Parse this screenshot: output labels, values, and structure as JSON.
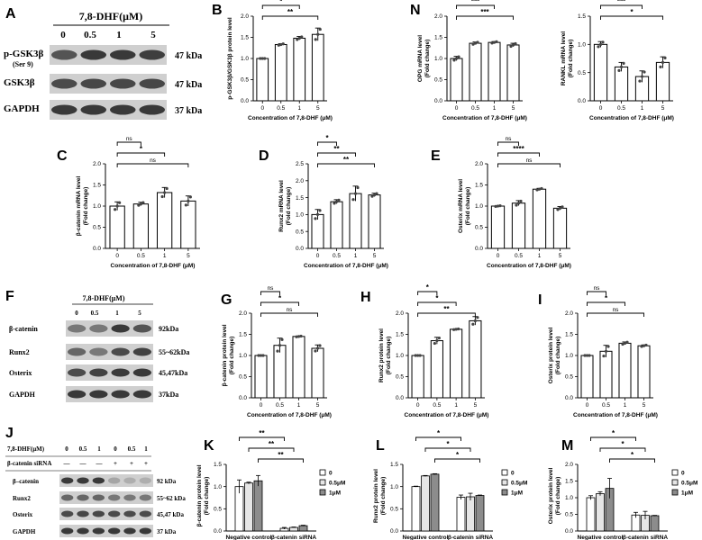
{
  "panels": {
    "A": {
      "label": "A",
      "dose_title": "7,8-DHF(μM)",
      "doses": [
        "0",
        "0.5",
        "1",
        "5"
      ],
      "rows": [
        {
          "label": "p-GSK3β",
          "sublabel": "(Ser 9)",
          "kda": "47 kDa"
        },
        {
          "label": "GSK3β",
          "kda": "47 kDa"
        },
        {
          "label": "GAPDH",
          "kda": "37 kDa"
        }
      ]
    },
    "F": {
      "label": "F",
      "dose_title": "7,8-DHF(μM)",
      "doses": [
        "0",
        "0.5",
        "1",
        "5"
      ],
      "rows": [
        {
          "label": "β-catenin",
          "kda": "92kDa"
        },
        {
          "label": "Runx2",
          "kda": "55~62kDa"
        },
        {
          "label": "Osterix",
          "kda": "45,47kDa"
        },
        {
          "label": "GAPDH",
          "kda": "37kDa"
        }
      ]
    },
    "J": {
      "label": "J",
      "row_titles": [
        "7,8-DHF(μM)",
        "β-catenin siRNA"
      ],
      "doses": [
        "0",
        "0.5",
        "1",
        "0",
        "0.5",
        "1"
      ],
      "sirna": [
        "—",
        "—",
        "—",
        "+",
        "+",
        "+"
      ],
      "rows": [
        {
          "label": "β–catenin",
          "kda": "92 kDa"
        },
        {
          "label": "Runx2",
          "kda": "55~62 kDa"
        },
        {
          "label": "Osterix",
          "kda": "45,47 kDa"
        },
        {
          "label": "GAPDH",
          "kda": "37 kDa"
        }
      ]
    }
  },
  "chart_data": [
    {
      "id": "B",
      "type": "bar",
      "title": "",
      "categories": [
        "0",
        "0.5",
        "1",
        "5"
      ],
      "values": [
        1.0,
        1.33,
        1.48,
        1.57
      ],
      "errors": [
        0,
        0.02,
        0.04,
        0.15
      ],
      "ylabel": "p-GSK3β/GSK3β protein level",
      "xlabel": "Concentration of 7,8-DHF (μM)",
      "ylim": [
        0,
        2.0
      ],
      "yticks": [
        "0.0",
        "0.5",
        "1.0",
        "1.5",
        "2.0"
      ],
      "bar_fill": "#ffffff",
      "brackets": [
        {
          "from": 0,
          "to": 1,
          "text": "*"
        },
        {
          "from": 0,
          "to": 2,
          "text": "*"
        },
        {
          "from": 0,
          "to": 3,
          "text": "**"
        }
      ]
    },
    {
      "id": "N",
      "type": "bar",
      "title": "",
      "categories": [
        "0",
        "0.5",
        "1",
        "5"
      ],
      "values": [
        1.0,
        1.36,
        1.38,
        1.32
      ],
      "errors": [
        0.05,
        0.03,
        0.02,
        0.04
      ],
      "ylabel": "OPG mRNA level\n(Fold change)",
      "xlabel": "Concentration of 7,8-DHF (μM)",
      "ylim": [
        0,
        2.0
      ],
      "yticks": [
        "0.0",
        "0.5",
        "1.0",
        "1.5",
        "2.0"
      ],
      "bar_fill": "#ffffff",
      "brackets": [
        {
          "from": 0,
          "to": 1,
          "text": "***"
        },
        {
          "from": 0,
          "to": 2,
          "text": "***"
        },
        {
          "from": 0,
          "to": 3,
          "text": "***"
        }
      ]
    },
    {
      "id": "RANKL",
      "type": "bar",
      "title": "",
      "categories": [
        "0",
        "0.5",
        "1",
        "5"
      ],
      "values": [
        1.0,
        0.6,
        0.43,
        0.68
      ],
      "errors": [
        0.05,
        0.08,
        0.1,
        0.1
      ],
      "ylabel": "RANKL mRNA level\n(Fold change)",
      "xlabel": "Concentration of 7,8-DHF (μM)",
      "ylim": [
        0,
        1.5
      ],
      "yticks": [
        "0.0",
        "0.5",
        "1.0",
        "1.5"
      ],
      "bar_fill": "#ffffff",
      "brackets": [
        {
          "from": 0,
          "to": 1,
          "text": "**"
        },
        {
          "from": 0,
          "to": 2,
          "text": "***"
        },
        {
          "from": 0,
          "to": 3,
          "text": "*"
        }
      ]
    },
    {
      "id": "C",
      "type": "bar",
      "title": "",
      "categories": [
        "0",
        "0.5",
        "1",
        "5"
      ],
      "values": [
        1.0,
        1.05,
        1.32,
        1.12
      ],
      "errors": [
        0.1,
        0.04,
        0.12,
        0.12
      ],
      "ylabel": "β-catenin mRNA level\n(Fold change)",
      "xlabel": "Concentration of 7,8-DHF (μM)",
      "ylim": [
        0,
        2.0
      ],
      "yticks": [
        "0.0",
        "0.5",
        "1.0",
        "1.5",
        "2.0"
      ],
      "bar_fill": "#ffffff",
      "brackets": [
        {
          "from": 0,
          "to": 1,
          "text": "ns"
        },
        {
          "from": 0,
          "to": 2,
          "text": "*"
        },
        {
          "from": 0,
          "to": 3,
          "text": "ns"
        }
      ]
    },
    {
      "id": "D",
      "type": "bar",
      "title": "",
      "categories": [
        "0",
        "0.5",
        "1",
        "5"
      ],
      "values": [
        1.0,
        1.38,
        1.62,
        1.58
      ],
      "errors": [
        0.15,
        0.06,
        0.22,
        0.05
      ],
      "ylabel": "Runx2 mRNA level\n(Fold change)",
      "xlabel": "Concentration of 7,8-DHF (μM)",
      "ylim": [
        0,
        2.5
      ],
      "yticks": [
        "0.0",
        "0.5",
        "1.0",
        "1.5",
        "2.0",
        "2.5"
      ],
      "bar_fill": "#ffffff",
      "brackets": [
        {
          "from": 0,
          "to": 1,
          "text": "*"
        },
        {
          "from": 0,
          "to": 2,
          "text": "**"
        },
        {
          "from": 0,
          "to": 3,
          "text": "**"
        }
      ]
    },
    {
      "id": "E",
      "type": "bar",
      "title": "",
      "categories": [
        "0",
        "0.5",
        "1",
        "5"
      ],
      "values": [
        1.0,
        1.07,
        1.4,
        0.95
      ],
      "errors": [
        0.01,
        0.06,
        0.02,
        0.04
      ],
      "ylabel": "Osterix mRNA level\n(Fold change)",
      "xlabel": "Concentration of 7,8-DHF (μM)",
      "ylim": [
        0,
        2.0
      ],
      "yticks": [
        "0.0",
        "0.5",
        "1.0",
        "1.5",
        "2.0"
      ],
      "bar_fill": "#ffffff",
      "brackets": [
        {
          "from": 0,
          "to": 1,
          "text": "ns"
        },
        {
          "from": 0,
          "to": 2,
          "text": "****"
        },
        {
          "from": 0,
          "to": 3,
          "text": "ns"
        }
      ]
    },
    {
      "id": "G",
      "type": "bar",
      "title": "",
      "categories": [
        "0",
        "0.5",
        "1",
        "5"
      ],
      "values": [
        1.0,
        1.24,
        1.45,
        1.17
      ],
      "errors": [
        0,
        0.17,
        0.01,
        0.08
      ],
      "ylabel": "β-catenin protein level\n(Fold change)",
      "xlabel": "Concentration of 7,8-DHF (μM)",
      "ylim": [
        0,
        2.0
      ],
      "yticks": [
        "0.0",
        "0.5",
        "1.0",
        "1.5",
        "2.0"
      ],
      "bar_fill": "#ffffff",
      "brackets": [
        {
          "from": 0,
          "to": 1,
          "text": "ns"
        },
        {
          "from": 0,
          "to": 2,
          "text": "*"
        },
        {
          "from": 0,
          "to": 3,
          "text": "ns"
        }
      ]
    },
    {
      "id": "H",
      "type": "bar",
      "title": "",
      "categories": [
        "0",
        "0.5",
        "1",
        "5"
      ],
      "values": [
        1.0,
        1.35,
        1.62,
        1.82
      ],
      "errors": [
        0,
        0.08,
        0.01,
        0.1
      ],
      "ylabel": "Runx2 protein level\n(Fold change)",
      "xlabel": "Concentration of 7,8-DHF (μM)",
      "ylim": [
        0,
        2.0
      ],
      "yticks": [
        "0.0",
        "0.5",
        "1.0",
        "1.5",
        "2.0"
      ],
      "bar_fill": "#ffffff",
      "brackets": [
        {
          "from": 0,
          "to": 1,
          "text": "*"
        },
        {
          "from": 0,
          "to": 2,
          "text": "*"
        },
        {
          "from": 0,
          "to": 3,
          "text": "**"
        }
      ]
    },
    {
      "id": "I",
      "type": "bar",
      "title": "",
      "categories": [
        "0",
        "0.5",
        "1",
        "5"
      ],
      "values": [
        1.0,
        1.1,
        1.29,
        1.23
      ],
      "errors": [
        0,
        0.14,
        0.03,
        0.02
      ],
      "ylabel": "Osterix protein level\n(Fold change)",
      "xlabel": "Concentration of 7,8-DHF (μM)",
      "ylim": [
        0,
        2.0
      ],
      "yticks": [
        "0.0",
        "0.5",
        "1.0",
        "1.5",
        "2.0"
      ],
      "bar_fill": "#ffffff",
      "brackets": [
        {
          "from": 0,
          "to": 1,
          "text": "ns"
        },
        {
          "from": 0,
          "to": 2,
          "text": "*"
        },
        {
          "from": 0,
          "to": 3,
          "text": "ns"
        }
      ]
    },
    {
      "id": "K",
      "type": "bar",
      "title": "",
      "groups": [
        "Negative control",
        "β-catenin siRNA"
      ],
      "series": [
        {
          "name": "0",
          "values": [
            1.0,
            0.06
          ],
          "errors": [
            0.15,
            0.02
          ]
        },
        {
          "name": "0.5μM",
          "values": [
            1.08,
            0.08
          ],
          "errors": [
            0.02,
            0.01
          ]
        },
        {
          "name": "1μM",
          "values": [
            1.13,
            0.12
          ],
          "errors": [
            0.12,
            0.01
          ]
        }
      ],
      "ylabel": "β-catenin protein level\n(Fold change)",
      "ylim": [
        0,
        1.5
      ],
      "yticks": [
        "0.0",
        "0.5",
        "1.0",
        "1.5"
      ],
      "brackets": [
        {
          "from": 0,
          "to": 3,
          "text": "**"
        },
        {
          "from": 1,
          "to": 4,
          "text": "**"
        },
        {
          "from": 2,
          "to": 5,
          "text": "**"
        }
      ]
    },
    {
      "id": "L",
      "type": "bar",
      "title": "",
      "groups": [
        "Negative control",
        "β-catenin siRNA"
      ],
      "series": [
        {
          "name": "0",
          "values": [
            1.0,
            0.76
          ],
          "errors": [
            0.01,
            0.05
          ]
        },
        {
          "name": "0.5μM",
          "values": [
            1.24,
            0.77
          ],
          "errors": [
            0.01,
            0.08
          ]
        },
        {
          "name": "1μM",
          "values": [
            1.28,
            0.8
          ],
          "errors": [
            0.01,
            0.01
          ]
        }
      ],
      "ylabel": "Runx2 protein level\n(Fold change)",
      "ylim": [
        0,
        1.5
      ],
      "yticks": [
        "0.0",
        "0.5",
        "1.0",
        "1.5"
      ],
      "brackets": [
        {
          "from": 0,
          "to": 3,
          "text": "*"
        },
        {
          "from": 1,
          "to": 4,
          "text": "*"
        },
        {
          "from": 2,
          "to": 5,
          "text": "*"
        }
      ]
    },
    {
      "id": "M",
      "type": "bar",
      "title": "",
      "groups": [
        "Negative control",
        "β-catenin siRNA"
      ],
      "series": [
        {
          "name": "0",
          "values": [
            1.0,
            0.48
          ],
          "errors": [
            0.06,
            0.08
          ]
        },
        {
          "name": "0.5μM",
          "values": [
            1.12,
            0.47
          ],
          "errors": [
            0.06,
            0.12
          ]
        },
        {
          "name": "1μM",
          "values": [
            1.28,
            0.46
          ],
          "errors": [
            0.3,
            0.01
          ]
        }
      ],
      "ylabel": "Osterix protein level\n(Fold change)",
      "ylim": [
        0,
        2.0
      ],
      "yticks": [
        "0.0",
        "0.5",
        "1.0",
        "1.5",
        "2.0"
      ],
      "brackets": [
        {
          "from": 0,
          "to": 3,
          "text": "*"
        },
        {
          "from": 1,
          "to": 4,
          "text": "*"
        },
        {
          "from": 2,
          "to": 5,
          "text": "*"
        }
      ]
    }
  ],
  "panel_letters": {
    "B": "B",
    "N": "N",
    "C": "C",
    "D": "D",
    "E": "E",
    "G": "G",
    "H": "H",
    "I": "I",
    "K": "K",
    "L": "L",
    "M": "M"
  },
  "colors": {
    "series_fills": [
      "#ffffff",
      "#e6e6e6",
      "#8c8c8c"
    ],
    "axis": "#000000"
  }
}
